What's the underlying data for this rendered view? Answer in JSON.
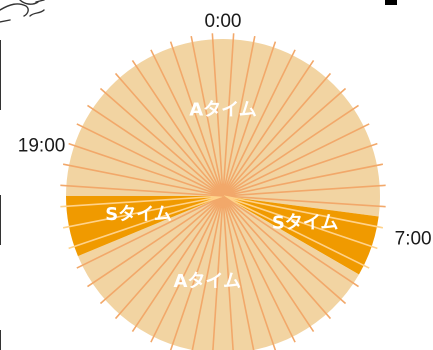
{
  "chart_data": {
    "type": "pie",
    "cycle_hours": 24,
    "start_at_top": "0:00",
    "direction": "clockwise",
    "tick_labels": [
      "0:00",
      "7:00",
      "19:00"
    ],
    "tick_hours": [
      0,
      7,
      19
    ],
    "segments": [
      {
        "label": "Aタイム",
        "from_hour": 18,
        "to_hour": 6.5,
        "color": "#f2d4a2"
      },
      {
        "label": "Sタイム",
        "from_hour": 6.5,
        "to_hour": 8,
        "color": "#f09a00"
      },
      {
        "label": "Aタイム",
        "from_hour": 8,
        "to_hour": 16.5,
        "color": "#f2d4a2"
      },
      {
        "label": "Sタイム",
        "from_hour": 16.5,
        "to_hour": 18,
        "color": "#f09a00"
      }
    ],
    "labels_on_chart": [
      {
        "text": "Aタイム",
        "hour": 0
      },
      {
        "text": "Sタイム",
        "hour": 7.2
      },
      {
        "text": "Aタイム",
        "hour": 12.7
      },
      {
        "text": "Sタイム",
        "hour": 17.2
      }
    ],
    "spokes": 48,
    "spoke_color": "#f2a86a",
    "spoke_color_on_dark": "#ffd28a"
  }
}
